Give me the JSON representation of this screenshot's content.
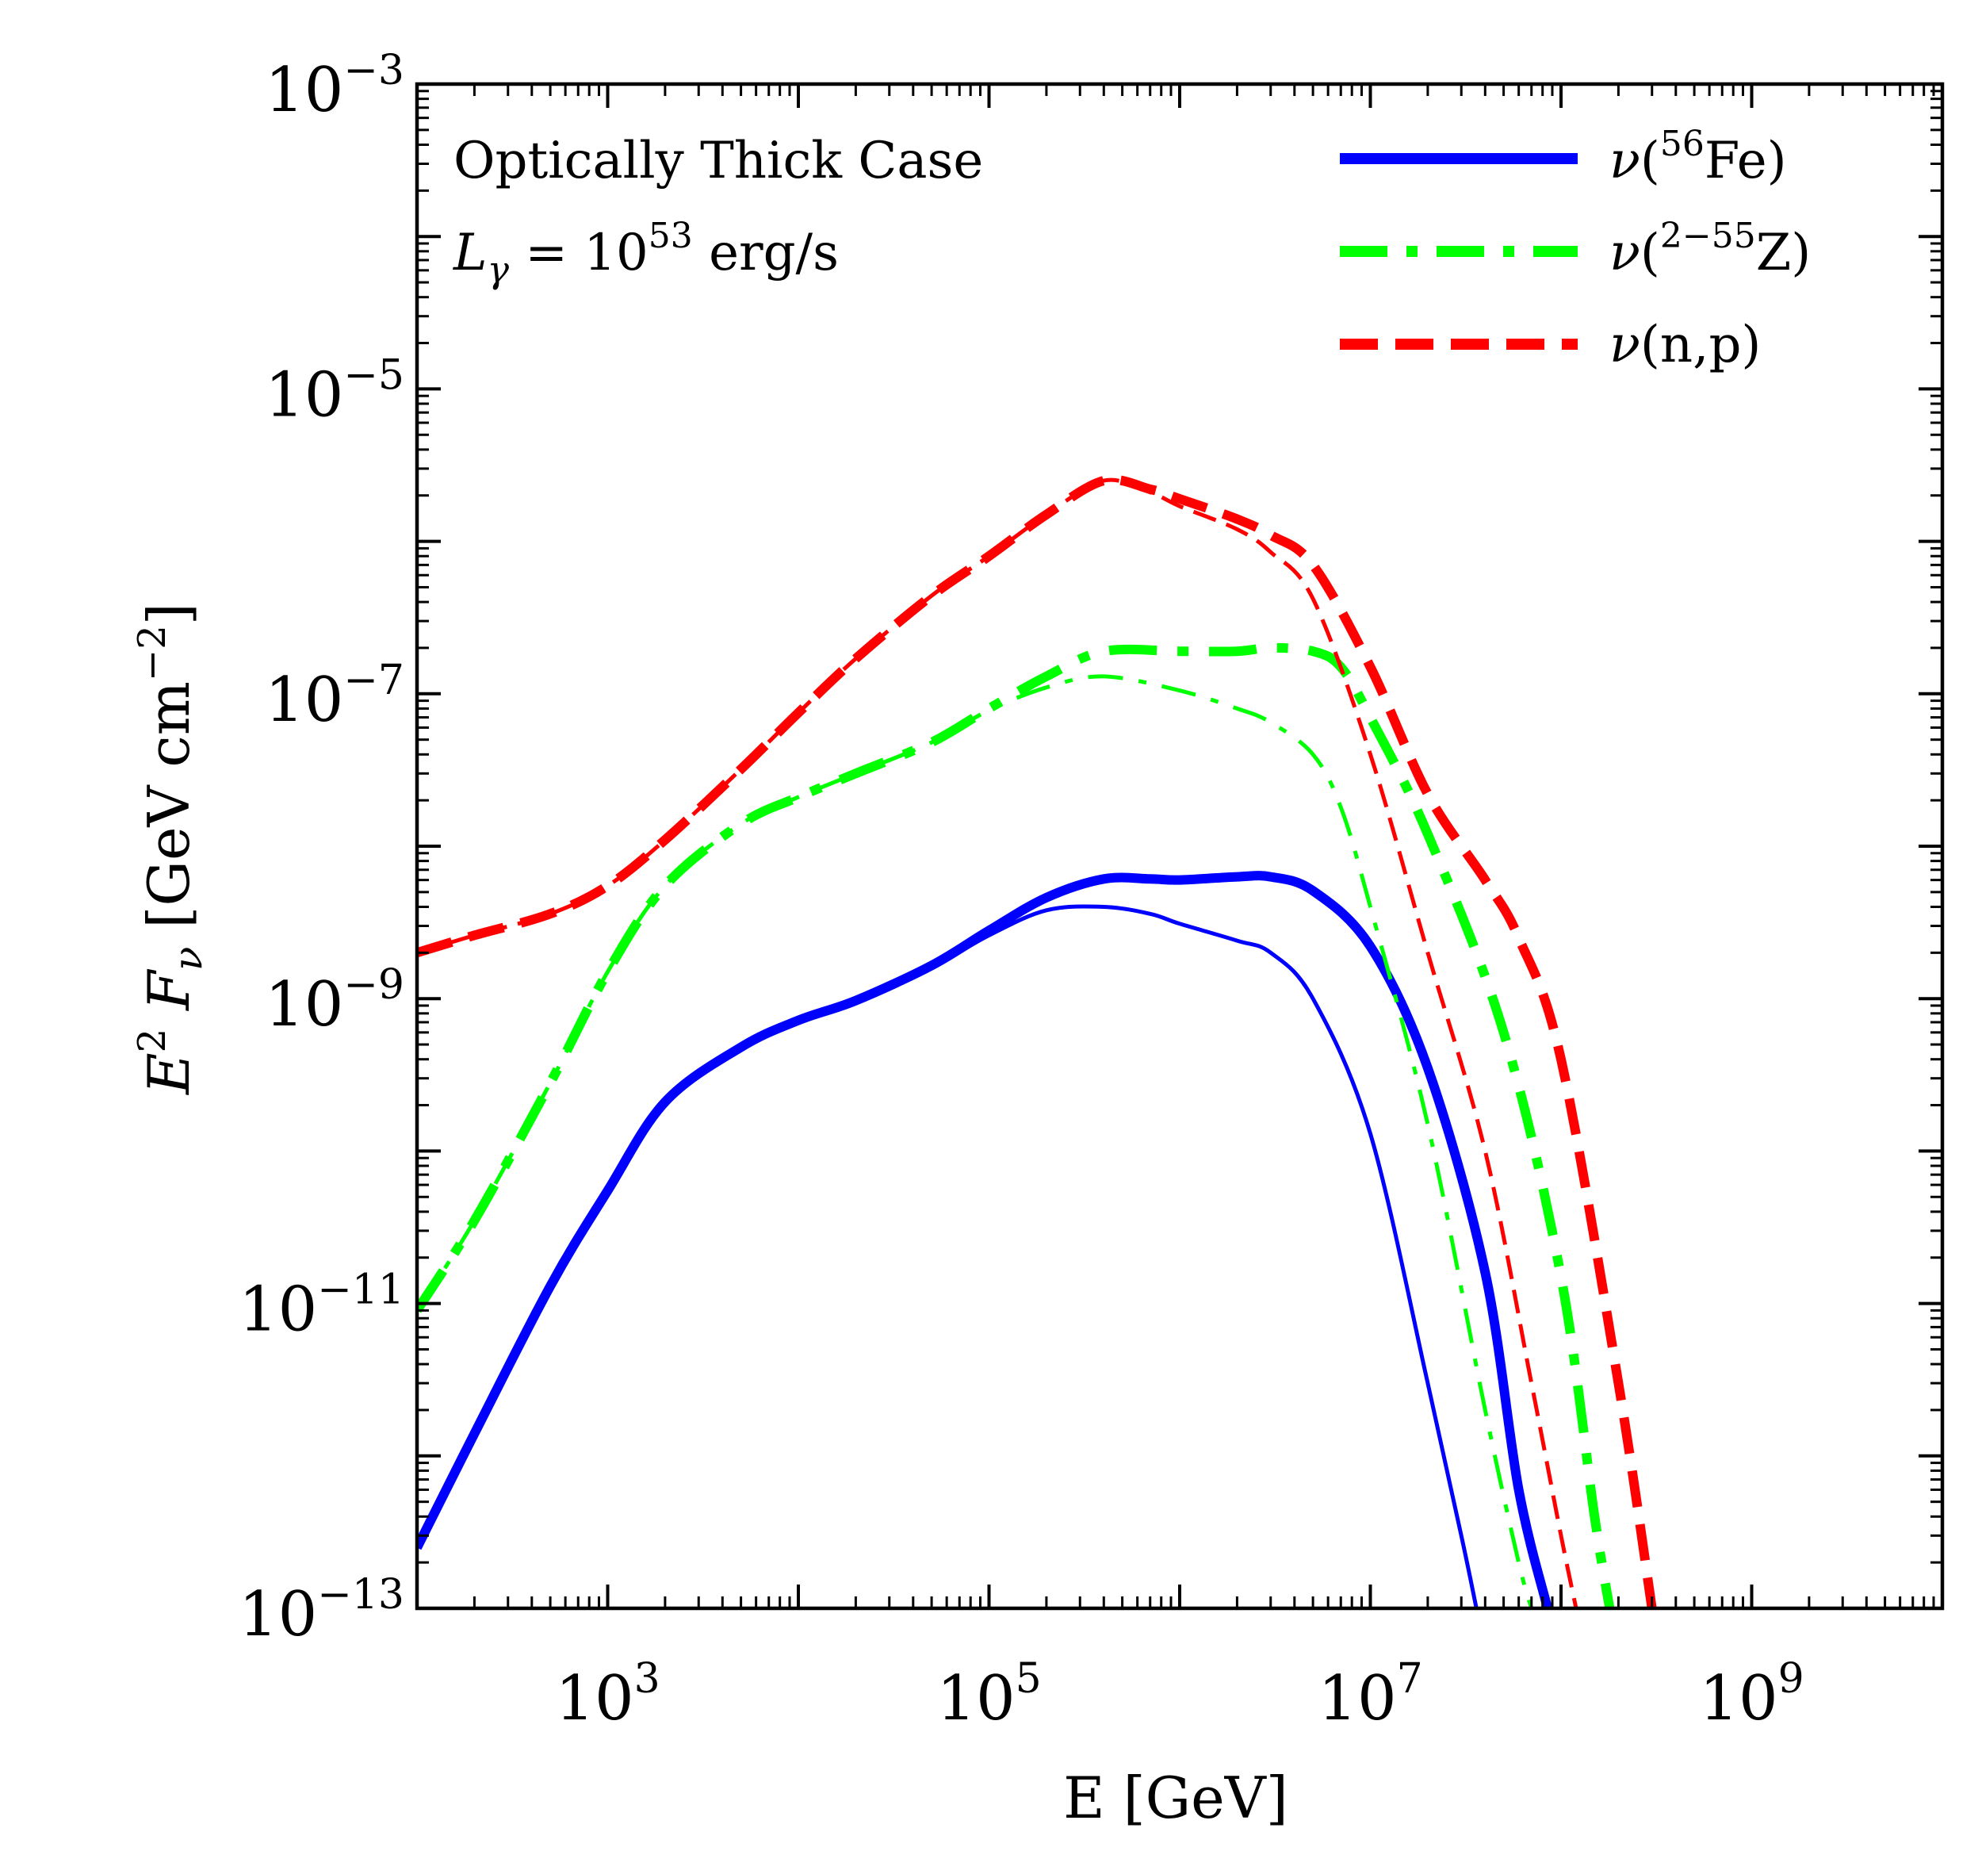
{
  "chart_data": {
    "type": "line",
    "xlabel": "E [GeV]",
    "ylabel": {
      "main": "E",
      "sup1": "2",
      "mid": " F",
      "sub": "ν",
      "unit": " [GeV cm",
      "sup2": "−2",
      "end": "]"
    },
    "xscale": "log",
    "yscale": "log",
    "xlim": [
      100,
      10000000000
    ],
    "ylim": [
      1e-13,
      0.001
    ],
    "grid": false,
    "legend_position": "top-right",
    "x_ticks": [
      {
        "value": 1000,
        "base": "10",
        "exp": "3"
      },
      {
        "value": 100000,
        "base": "10",
        "exp": "5"
      },
      {
        "value": 10000000,
        "base": "10",
        "exp": "7"
      },
      {
        "value": 1000000000,
        "base": "10",
        "exp": "9"
      }
    ],
    "y_ticks": [
      {
        "value": 0.001,
        "base": "10",
        "exp": "−3"
      },
      {
        "value": 1e-05,
        "base": "10",
        "exp": "−5"
      },
      {
        "value": 1e-07,
        "base": "10",
        "exp": "−7"
      },
      {
        "value": 1e-09,
        "base": "10",
        "exp": "−9"
      },
      {
        "value": 1e-11,
        "base": "10",
        "exp": "−11"
      },
      {
        "value": 1e-13,
        "base": "10",
        "exp": "−13"
      }
    ],
    "annotations": {
      "line1": "Optically Thick Case",
      "line2_var": "L",
      "line2_sub": "γ",
      "line2_eq": " = 10",
      "line2_sup": "53",
      "line2_unit": " erg/s"
    },
    "legend": [
      {
        "nu": "ν",
        "pre": "(",
        "sup": "56",
        "main": "Fe",
        "post": ")",
        "color": "#0000ff",
        "style": "solid"
      },
      {
        "nu": "ν",
        "pre": "(",
        "sup": "2−55",
        "main": "Z",
        "post": ")",
        "color": "#00ff00",
        "style": "dashdot"
      },
      {
        "nu": "ν",
        "pre": "(",
        "sup": "",
        "main": "n,p",
        "post": ")",
        "color": "#ff0000",
        "style": "dashed"
      }
    ],
    "series": [
      {
        "name": "ν(⁵⁶Fe)",
        "color": "#0000ff",
        "style": "solid",
        "weight": "thick",
        "x": [
          100,
          200,
          500,
          1000,
          2000,
          5000,
          10000,
          20000,
          50000,
          100000,
          200000,
          400000,
          700000,
          1000000,
          2000000,
          3000000,
          5000000,
          10000000,
          20000000,
          40000000,
          60000000,
          85000000
        ],
        "y": [
          2.5e-13,
          1.4e-12,
          1.3e-11,
          5.5e-11,
          2.1e-10,
          4.8e-10,
          7.2e-10,
          9.7e-10,
          1.65e-09,
          2.8e-09,
          4.6e-09,
          6.1e-09,
          6.1e-09,
          6e-09,
          6.3e-09,
          6.3e-09,
          5.1e-09,
          2.2e-09,
          3.5e-10,
          1.6e-11,
          6e-13,
          1e-13
        ]
      },
      {
        "name": "",
        "color": "#0000ff",
        "style": "solid",
        "weight": "thin",
        "x": [
          100,
          200,
          500,
          1000,
          2000,
          5000,
          10000,
          20000,
          50000,
          100000,
          200000,
          400000,
          700000,
          1000000,
          2000000,
          3000000,
          5000000,
          10000000,
          20000000,
          30000000,
          36000000
        ],
        "y": [
          2.5e-13,
          1.4e-12,
          1.3e-11,
          5.5e-11,
          2.1e-10,
          4.8e-10,
          7.2e-10,
          9.7e-10,
          1.6e-09,
          2.6e-09,
          3.8e-09,
          4e-09,
          3.6e-09,
          3.1e-09,
          2.4e-09,
          2e-09,
          1e-09,
          1.3e-10,
          3e-12,
          3e-13,
          1e-13
        ]
      },
      {
        "name": "ν(²⁻⁵⁵Z)",
        "color": "#00ff00",
        "style": "dashdot",
        "weight": "thick",
        "x": [
          100,
          200,
          500,
          1000,
          2000,
          5000,
          10000,
          20000,
          50000,
          100000,
          200000,
          400000,
          1000000,
          2000000,
          3000000,
          5000000,
          7000000,
          10000000,
          20000000,
          50000000,
          100000000,
          150000000,
          180000000
        ],
        "y": [
          9e-12,
          3.5e-11,
          2.8e-10,
          1.5e-09,
          5.5e-09,
          1.4e-08,
          2.1e-08,
          3e-08,
          4.8e-08,
          8e-08,
          1.3e-07,
          1.9e-07,
          1.9e-07,
          1.9e-07,
          2e-07,
          1.9e-07,
          1.5e-07,
          7e-08,
          1.2e-08,
          6e-10,
          1.5e-11,
          4e-13,
          1e-13
        ]
      },
      {
        "name": "",
        "color": "#00ff00",
        "style": "dashdot",
        "weight": "thin",
        "x": [
          100,
          200,
          500,
          1000,
          2000,
          5000,
          10000,
          20000,
          50000,
          100000,
          200000,
          400000,
          1000000,
          2000000,
          3000000,
          5000000,
          7000000,
          10000000,
          20000000,
          40000000,
          60000000,
          70000000
        ],
        "y": [
          9e-12,
          3.5e-11,
          2.8e-10,
          1.5e-09,
          5.5e-09,
          1.4e-08,
          2.1e-08,
          3e-08,
          4.8e-08,
          7.8e-08,
          1.1e-07,
          1.3e-07,
          1.05e-07,
          8e-08,
          6.5e-08,
          4e-08,
          1.8e-08,
          4e-09,
          1.5e-10,
          2e-12,
          2e-13,
          1e-13
        ]
      },
      {
        "name": "ν(n,p)",
        "color": "#ff0000",
        "style": "dashed",
        "weight": "thick",
        "x": [
          100,
          200,
          500,
          1000,
          2000,
          5000,
          10000,
          20000,
          50000,
          100000,
          200000,
          400000,
          700000,
          1000000,
          2000000,
          3000000,
          5000000,
          10000000,
          20000000,
          40000000,
          60000000,
          100000000,
          200000000,
          300000000
        ],
        "y": [
          2e-09,
          2.6e-09,
          3.6e-09,
          5.5e-09,
          1.1e-08,
          3.2e-08,
          7.5e-08,
          1.7e-07,
          4.4e-07,
          8e-07,
          1.5e-06,
          2.5e-06,
          2.2e-06,
          1.9e-06,
          1.4e-06,
          1.1e-06,
          7e-07,
          1.5e-07,
          2.2e-08,
          6e-09,
          2.5e-09,
          4e-10,
          3e-12,
          1e-13
        ]
      },
      {
        "name": "",
        "color": "#ff0000",
        "style": "dashed",
        "weight": "thin",
        "x": [
          100,
          200,
          500,
          1000,
          2000,
          5000,
          10000,
          20000,
          50000,
          100000,
          200000,
          400000,
          700000,
          1000000,
          2000000,
          3000000,
          5000000,
          10000000,
          20000000,
          40000000,
          70000000,
          100000000,
          120000000
        ],
        "y": [
          2e-09,
          2.6e-09,
          3.6e-09,
          5.5e-09,
          1.1e-08,
          3.2e-08,
          7.5e-08,
          1.7e-07,
          4.4e-07,
          8e-07,
          1.5e-06,
          2.5e-06,
          2.1e-06,
          1.7e-06,
          1.2e-06,
          8.5e-07,
          4.2e-07,
          4e-08,
          2e-09,
          1e-10,
          3e-12,
          3e-13,
          1e-13
        ]
      }
    ]
  }
}
